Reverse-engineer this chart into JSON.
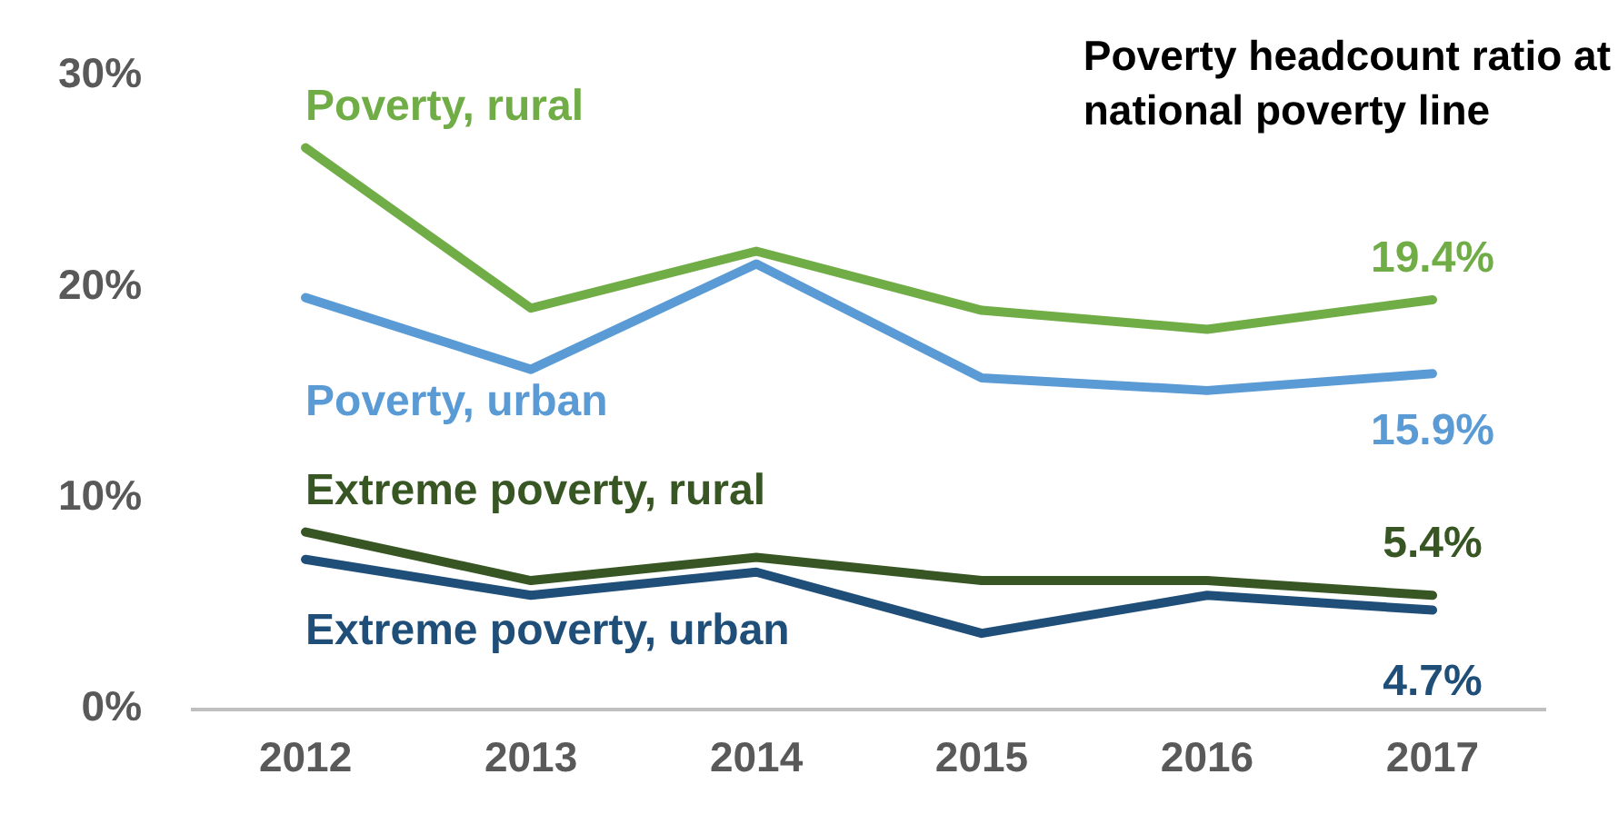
{
  "chart_data": {
    "type": "line",
    "title": "Poverty headcount ratio at national poverty line",
    "categories": [
      "2012",
      "2013",
      "2014",
      "2015",
      "2016",
      "2017"
    ],
    "series": [
      {
        "name": "Poverty, rural",
        "color": "#70ad47",
        "values": [
          26.6,
          19.0,
          21.7,
          18.9,
          18.0,
          19.4
        ],
        "value_labels": [
          null,
          null,
          null,
          null,
          null,
          "19.4%"
        ]
      },
      {
        "name": "Poverty, urban",
        "color": "#5b9bd5",
        "values": [
          19.5,
          16.1,
          21.1,
          15.7,
          15.1,
          15.9
        ],
        "value_labels": [
          null,
          null,
          null,
          null,
          null,
          "15.9%"
        ]
      },
      {
        "name": "Extreme poverty, rural",
        "color": "#375623",
        "values": [
          8.4,
          6.1,
          7.2,
          6.1,
          6.1,
          5.4
        ],
        "value_labels": [
          null,
          null,
          null,
          null,
          null,
          "5.4%"
        ]
      },
      {
        "name": "Extreme poverty, urban",
        "color": "#1f4e79",
        "values": [
          7.1,
          5.4,
          6.5,
          3.6,
          5.4,
          4.7
        ],
        "value_labels": [
          null,
          null,
          null,
          null,
          null,
          "4.7%"
        ]
      }
    ],
    "ylim": [
      0,
      30
    ],
    "yticks": [
      {
        "value": 0,
        "label": "0%"
      },
      {
        "value": 10,
        "label": "10%"
      },
      {
        "value": 20,
        "label": "20%"
      },
      {
        "value": 30,
        "label": "30%"
      }
    ],
    "grid": false,
    "legend": false,
    "marker": "none",
    "line_style": "solid"
  }
}
